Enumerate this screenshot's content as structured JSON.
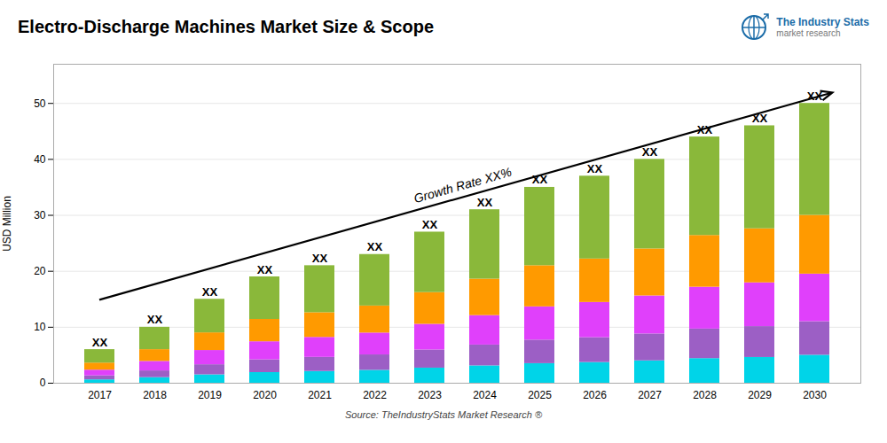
{
  "chart_data": {
    "type": "bar",
    "stacked": true,
    "title": "Electro-Discharge Machines Market Size & Scope",
    "ylabel": "USD Million",
    "categories": [
      2017,
      2018,
      2019,
      2020,
      2021,
      2022,
      2023,
      2024,
      2025,
      2026,
      2027,
      2028,
      2029,
      2030
    ],
    "series": [
      {
        "color": "#00d4e8",
        "values": [
          0.6,
          1,
          1.5,
          1.9,
          2.1,
          2.3,
          2.7,
          3.1,
          3.5,
          3.7,
          4,
          4.4,
          4.6,
          5
        ]
      },
      {
        "color": "#9c5fc5",
        "values": [
          0.72,
          1.2,
          1.8,
          2.28,
          2.52,
          2.76,
          3.24,
          3.72,
          4.2,
          4.44,
          4.8,
          5.28,
          5.52,
          6
        ]
      },
      {
        "color": "#e040fb",
        "values": [
          1.02,
          1.7,
          2.55,
          3.23,
          3.57,
          3.91,
          4.59,
          5.27,
          5.95,
          6.29,
          6.8,
          7.48,
          7.82,
          8.5
        ]
      },
      {
        "color": "#ff9a00",
        "values": [
          1.26,
          2.1,
          3.15,
          3.99,
          4.41,
          4.83,
          5.67,
          6.51,
          7.35,
          7.77,
          8.4,
          9.24,
          9.66,
          10.5
        ]
      },
      {
        "color": "#8ab83a",
        "values": [
          2.4,
          4,
          6,
          7.6,
          8.4,
          9.2,
          10.8,
          12.4,
          14,
          14.8,
          16,
          17.6,
          18.4,
          20
        ]
      }
    ],
    "ylim": [
      0,
      57
    ],
    "yticks": [
      0,
      10,
      20,
      30,
      40,
      50
    ],
    "grid": true,
    "annotations": [
      {
        "text": "Growth Rate XX%"
      },
      {
        "text": "Source: TheIndustryStats Market Research ®"
      },
      {
        "text": "The Industry Stats",
        "color": "#1b6ca8"
      },
      {
        "text": "market research"
      },
      {
        "text": "XX",
        "x": 2017
      },
      {
        "text": "XX",
        "x": 2018
      },
      {
        "text": "XX",
        "x": 2019
      },
      {
        "text": "XX",
        "x": 2020
      },
      {
        "text": "XX",
        "x": 2021
      },
      {
        "text": "XX",
        "x": 2022
      },
      {
        "text": "XX",
        "x": 2023
      },
      {
        "text": "XX",
        "x": 2024
      },
      {
        "text": "XX",
        "x": 2025
      },
      {
        "text": "XX",
        "x": 2026
      },
      {
        "text": "XX",
        "x": 2027
      },
      {
        "text": "XX",
        "x": 2028
      },
      {
        "text": "XX",
        "x": 2029
      },
      {
        "text": "XX",
        "x": 2030
      }
    ]
  }
}
